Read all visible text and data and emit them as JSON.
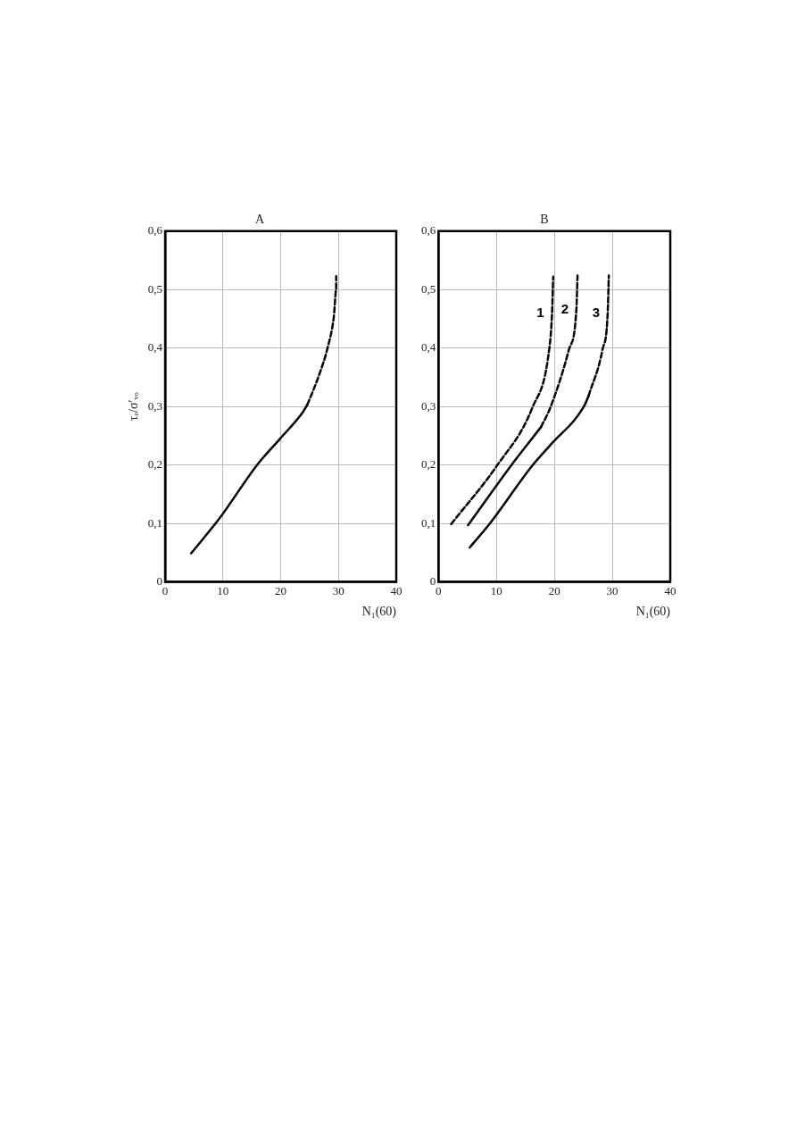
{
  "chart_data": [
    {
      "type": "line",
      "title": "A",
      "xlabel": "N₁(60)",
      "ylabel": "τₑ/σ′ᵥₒ",
      "xlim": [
        0,
        40
      ],
      "xticks": [
        0,
        10,
        20,
        30,
        40
      ],
      "ylim": [
        0,
        0.6
      ],
      "yticks": [
        0,
        {
          "value": 0.1,
          "label": "0,1"
        },
        {
          "value": 0.2,
          "label": "0,2"
        },
        {
          "value": 0.3,
          "label": "0,3"
        },
        {
          "value": 0.4,
          "label": "0,4"
        },
        {
          "value": 0.5,
          "label": "0,5"
        },
        {
          "value": 0.6,
          "label": "0,6"
        }
      ],
      "grid": true,
      "marker": "none",
      "series": [
        {
          "color": "#000000",
          "line_style": "solid",
          "x": [
            4.5,
            9.5,
            15.9,
            19.8,
            23.8,
            24.6
          ],
          "values": [
            0.049,
            0.11,
            0.2,
            0.244,
            0.29,
            0.303
          ]
        },
        {
          "color": "#000000",
          "line_style": "dashed",
          "x": [
            24.6,
            26.5,
            28.1,
            29.2,
            29.6,
            29.6
          ],
          "values": [
            0.303,
            0.35,
            0.4,
            0.454,
            0.5,
            0.523
          ]
        }
      ]
    },
    {
      "type": "line",
      "title": "B",
      "xlabel": "N₁(60)",
      "xlim": [
        0,
        40
      ],
      "xticks": [
        0,
        10,
        20,
        30,
        40
      ],
      "ylim": [
        0,
        0.6
      ],
      "yticks": [
        0,
        {
          "value": 0.1,
          "label": "0,1"
        },
        {
          "value": 0.2,
          "label": "0,2"
        },
        {
          "value": 0.3,
          "label": "0,3"
        },
        {
          "value": 0.4,
          "label": "0,4"
        },
        {
          "value": 0.5,
          "label": "0,5"
        },
        {
          "value": 0.6,
          "label": "0,6"
        }
      ],
      "grid": true,
      "marker": "none",
      "series": [
        {
          "name": "1",
          "color": "#000000",
          "line_style": "dashed",
          "x": [
            2.2,
            10.1,
            16.2,
            19.1,
            19.6,
            19.8
          ],
          "values": [
            0.099,
            0.199,
            0.298,
            0.397,
            0.459,
            0.522
          ]
        },
        {
          "color": "#000000",
          "line_style": "solid",
          "x": [
            5.1,
            12.6,
            17.7
          ],
          "values": [
            0.097,
            0.2,
            0.265
          ]
        },
        {
          "name": "2",
          "color": "#000000",
          "line_style": "dashed",
          "x": [
            17.7,
            19.3,
            22.5,
            23.8,
            24.0
          ],
          "values": [
            0.265,
            0.298,
            0.397,
            0.466,
            0.524
          ]
        },
        {
          "color": "#000000",
          "line_style": "solid",
          "x": [
            5.4,
            8.8,
            16.2,
            19.3,
            25.1,
            25.9
          ],
          "values": [
            0.059,
            0.099,
            0.199,
            0.234,
            0.3,
            0.318
          ]
        },
        {
          "name": "3",
          "color": "#000000",
          "line_style": "dashed",
          "x": [
            25.9,
            28.3,
            29.2,
            29.4
          ],
          "values": [
            0.318,
            0.397,
            0.459,
            0.524
          ]
        }
      ]
    }
  ]
}
